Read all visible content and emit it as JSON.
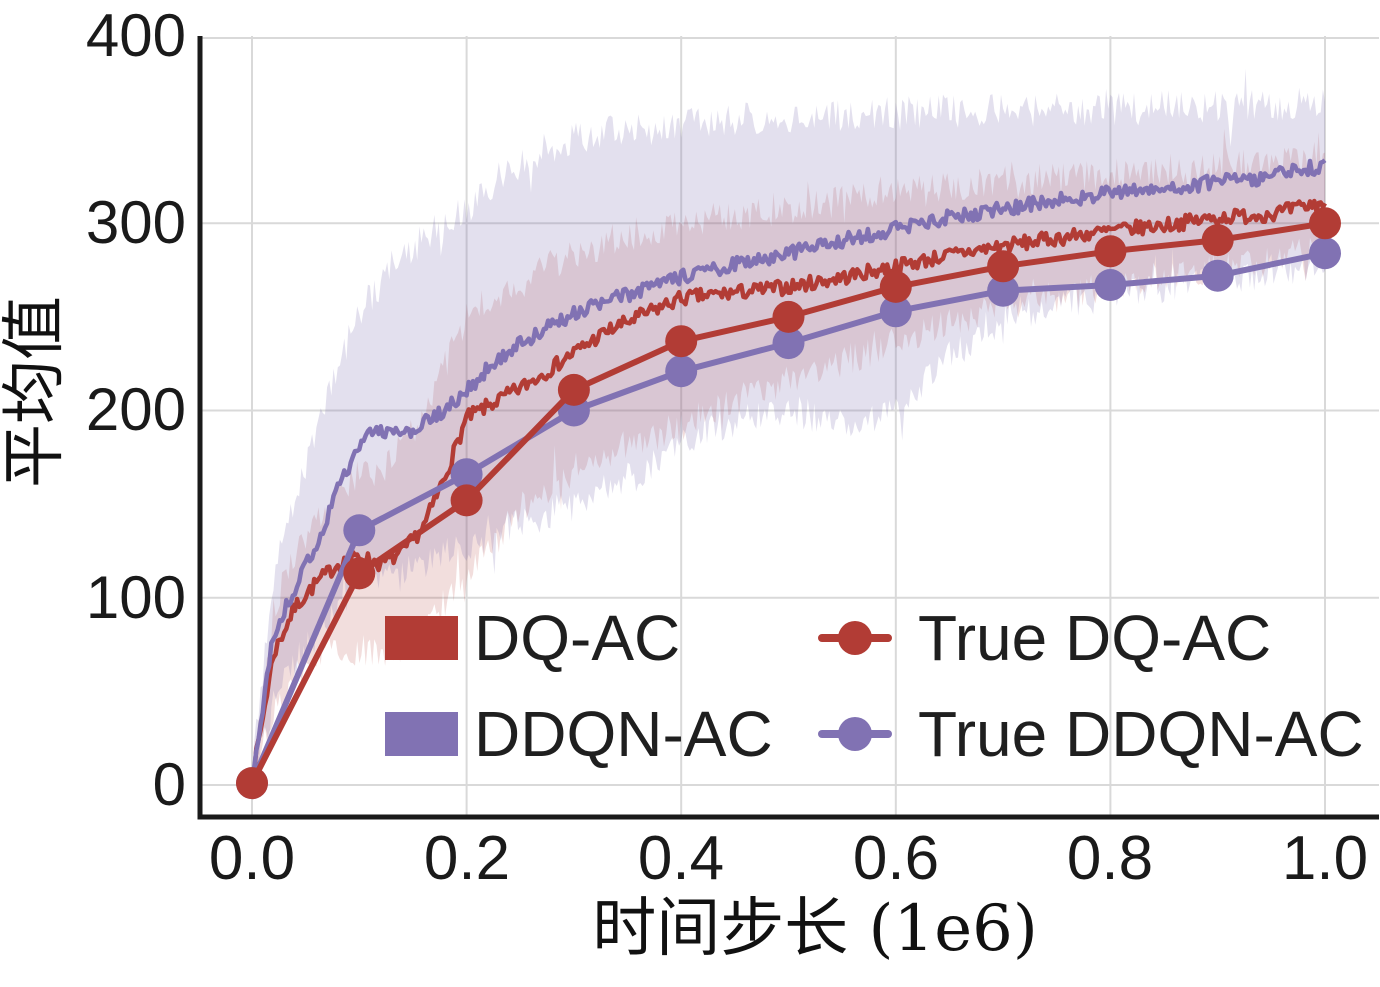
{
  "chart_data": {
    "type": "line",
    "title": "",
    "xlabel": "时间步长 (1e6)",
    "ylabel": "平均值",
    "xlim": [
      -0.05,
      1.05
    ],
    "ylim": [
      -17,
      400
    ],
    "grid": true,
    "legend_position": "lower-center-inside",
    "x_ticks": [
      {
        "value": 0.0,
        "label": "0.0"
      },
      {
        "value": 0.2,
        "label": "0.2"
      },
      {
        "value": 0.4,
        "label": "0.4"
      },
      {
        "value": 0.6,
        "label": "0.6"
      },
      {
        "value": 0.8,
        "label": "0.8"
      },
      {
        "value": 1.0,
        "label": "1.0"
      }
    ],
    "y_ticks": [
      {
        "value": 400,
        "label": "400"
      },
      {
        "value": 300,
        "label": "300"
      },
      {
        "value": 200,
        "label": "200"
      },
      {
        "value": 100,
        "label": "100"
      },
      {
        "value": 0,
        "label": "0"
      }
    ],
    "colors": {
      "red": "#b23c35",
      "purple": "#8172b3",
      "grid": "#d9d9d9",
      "axis": "#1a1a1a",
      "background": "#ffffff"
    },
    "series": [
      {
        "name": "DQ-AC",
        "kind": "mean_band",
        "color": "#b23c35",
        "band_fill_opacity": 0.17,
        "x": [
          0,
          0.02,
          0.04,
          0.06,
          0.08,
          0.1,
          0.12,
          0.14,
          0.16,
          0.18,
          0.2,
          0.225,
          0.25,
          0.275,
          0.3,
          0.33,
          0.36,
          0.4,
          0.45,
          0.5,
          0.55,
          0.6,
          0.65,
          0.7,
          0.75,
          0.8,
          0.85,
          0.9,
          0.95,
          1.0
        ],
        "mean": [
          2,
          70,
          95,
          108,
          118,
          122,
          118,
          124,
          138,
          165,
          196,
          204,
          212,
          221,
          231,
          242,
          250,
          260,
          263,
          266,
          271,
          277,
          283,
          288,
          292,
          296,
          299,
          303,
          305,
          311
        ],
        "band_low": [
          0,
          38,
          58,
          68,
          75,
          72,
          68,
          72,
          82,
          98,
          110,
          128,
          148,
          158,
          168,
          176,
          184,
          192,
          205,
          216,
          226,
          237,
          247,
          255,
          261,
          267,
          272,
          276,
          280,
          287
        ],
        "band_high": [
          6,
          95,
          125,
          140,
          155,
          165,
          168,
          180,
          200,
          225,
          250,
          260,
          268,
          276,
          283,
          290,
          295,
          301,
          305,
          308,
          312,
          316,
          319,
          322,
          324,
          326,
          328,
          330,
          332,
          336
        ]
      },
      {
        "name": "DDQN-AC",
        "kind": "mean_band",
        "color": "#8172b3",
        "band_fill_opacity": 0.22,
        "x": [
          0,
          0.02,
          0.04,
          0.06,
          0.08,
          0.1,
          0.12,
          0.14,
          0.16,
          0.18,
          0.2,
          0.225,
          0.25,
          0.275,
          0.3,
          0.33,
          0.36,
          0.4,
          0.45,
          0.5,
          0.55,
          0.6,
          0.65,
          0.7,
          0.75,
          0.8,
          0.85,
          0.9,
          0.95,
          1.0
        ],
        "mean": [
          2,
          80,
          105,
          128,
          158,
          183,
          190,
          186,
          193,
          200,
          210,
          226,
          236,
          244,
          252,
          258,
          264,
          271,
          278,
          284,
          291,
          297,
          303,
          308,
          312,
          316,
          319,
          322,
          325,
          331
        ],
        "band_low": [
          0,
          45,
          65,
          80,
          95,
          105,
          110,
          112,
          118,
          124,
          128,
          134,
          140,
          145,
          150,
          158,
          166,
          183,
          195,
          200,
          194,
          199,
          228,
          250,
          257,
          262,
          266,
          270,
          273,
          278
        ],
        "band_high": [
          6,
          110,
          150,
          190,
          225,
          252,
          268,
          282,
          292,
          300,
          308,
          322,
          332,
          340,
          345,
          349,
          352,
          354,
          356,
          357,
          358,
          359,
          360,
          360,
          361,
          361,
          362,
          362,
          363,
          364
        ]
      },
      {
        "name": "True DQ-AC",
        "kind": "line_markers",
        "color": "#b23c35",
        "x": [
          0,
          0.1,
          0.2,
          0.3,
          0.4,
          0.5,
          0.6,
          0.7,
          0.8,
          0.9,
          1.0
        ],
        "values": [
          1,
          113,
          152,
          211,
          237,
          250,
          266,
          277,
          285,
          291,
          300
        ]
      },
      {
        "name": "True DDQN-AC",
        "kind": "line_markers",
        "color": "#8172b3",
        "x": [
          0,
          0.1,
          0.2,
          0.3,
          0.4,
          0.5,
          0.6,
          0.7,
          0.8,
          0.9,
          1.0
        ],
        "values": [
          1,
          136,
          166,
          200,
          221,
          236,
          253,
          264,
          267,
          272,
          284
        ]
      }
    ],
    "legend": {
      "entries": [
        {
          "label": "DQ-AC",
          "symbol": "patch",
          "color": "#b23c35"
        },
        {
          "label": "DDQN-AC",
          "symbol": "patch",
          "color": "#8172b3"
        },
        {
          "label": "True DQ-AC",
          "symbol": "line-marker",
          "color": "#b23c35"
        },
        {
          "label": "True DDQN-AC",
          "symbol": "line-marker",
          "color": "#8172b3"
        }
      ]
    }
  }
}
